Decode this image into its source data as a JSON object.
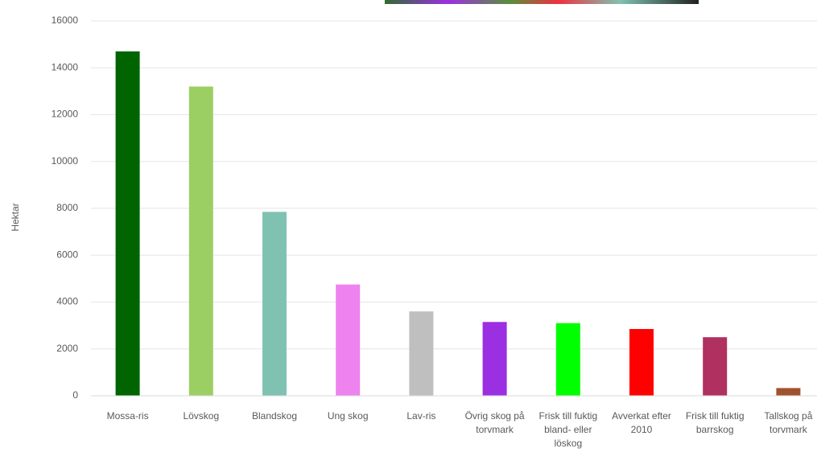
{
  "chart_data": {
    "type": "bar",
    "y_label": "Hektar",
    "categories": [
      "Mossa-ris",
      "Lövskog",
      "Blandskog",
      "Ung skog",
      "Lav-ris",
      "Övrig skog på torvmark",
      "Frisk till fuktig bland- eller löskog",
      "Avverkat efter 2010",
      "Frisk till fuktig barrskog",
      "Tallskog på torvmark"
    ],
    "values": [
      14700,
      13200,
      7850,
      4750,
      3600,
      3150,
      3100,
      2850,
      2500,
      330
    ],
    "colors": [
      "#006400",
      "#9bcf63",
      "#80c2b2",
      "#ee82ee",
      "#bfbfbf",
      "#9b30e3",
      "#00ff00",
      "#ff0000",
      "#b0305f",
      "#a0522d"
    ],
    "ylim": [
      0,
      16000
    ],
    "yticks": [
      0,
      2000,
      4000,
      6000,
      8000,
      10000,
      12000,
      14000,
      16000
    ],
    "grid": true
  }
}
